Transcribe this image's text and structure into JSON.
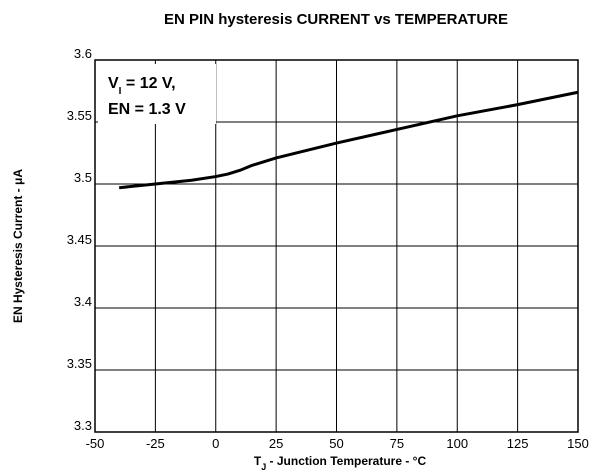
{
  "chart_data": {
    "type": "line",
    "title": "EN PIN hysteresis CURRENT vs TEMPERATURE",
    "x_label": [
      "T",
      "J",
      " - Junction Temperature - °C"
    ],
    "y_label": "EN Hysteresis Current - μA",
    "annotation": [
      [
        "V",
        "I",
        " = 12 V,"
      ],
      [
        "EN = 1.3 V"
      ]
    ],
    "x": [
      -40,
      -25,
      -10,
      0,
      5,
      10,
      15,
      20,
      25,
      50,
      75,
      100,
      125,
      150
    ],
    "series": [
      {
        "name": "EN hysteresis current",
        "color": "#000000",
        "values": [
          3.497,
          3.5,
          3.503,
          3.506,
          3.508,
          3.511,
          3.515,
          3.518,
          3.521,
          3.533,
          3.544,
          3.555,
          3.564,
          3.574
        ]
      }
    ],
    "xlim": [
      -50,
      150
    ],
    "xticks": [
      -50,
      -25,
      0,
      25,
      50,
      75,
      100,
      125,
      150
    ],
    "ylim": [
      3.3,
      3.6
    ],
    "yticks": [
      3.3,
      3.35,
      3.4,
      3.45,
      3.5,
      3.55,
      3.6
    ],
    "grid": true
  }
}
